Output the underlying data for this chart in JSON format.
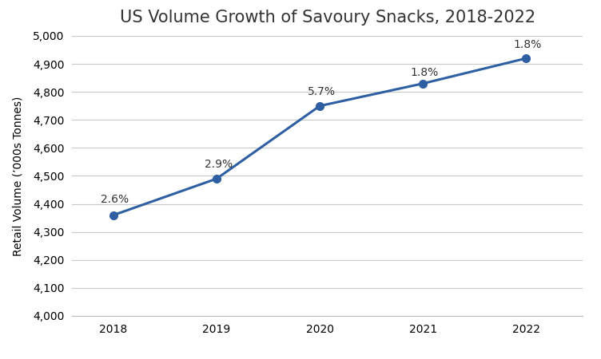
{
  "title": "US Volume Growth of Savoury Snacks, 2018-2022",
  "ylabel": "Retail Volume (’000s Tonnes)",
  "years": [
    2018,
    2019,
    2020,
    2021,
    2022
  ],
  "values": [
    4360,
    4490,
    4750,
    4830,
    4920
  ],
  "growth_labels": [
    "2.6%",
    "2.9%",
    "5.7%",
    "1.8%",
    "1.8%"
  ],
  "annotation_offsets_x": [
    -0.12,
    -0.12,
    -0.12,
    -0.12,
    -0.12
  ],
  "annotation_offsets_y": [
    35,
    30,
    30,
    20,
    28
  ],
  "ylim": [
    4000,
    5000
  ],
  "yticks": [
    4000,
    4100,
    4200,
    4300,
    4400,
    4500,
    4600,
    4700,
    4800,
    4900,
    5000
  ],
  "xlim_left": 2017.6,
  "xlim_right": 2022.55,
  "line_color": "#2E5FA3",
  "marker_color": "#2E5FA3",
  "marker_size": 7,
  "line_width": 2.2,
  "background_color": "#FFFFFF",
  "grid_color": "#C8C8C8",
  "grid_linewidth": 0.8,
  "title_fontsize": 15,
  "ylabel_fontsize": 10,
  "tick_fontsize": 10,
  "annotation_fontsize": 10,
  "spine_color": "#BBBBBB"
}
